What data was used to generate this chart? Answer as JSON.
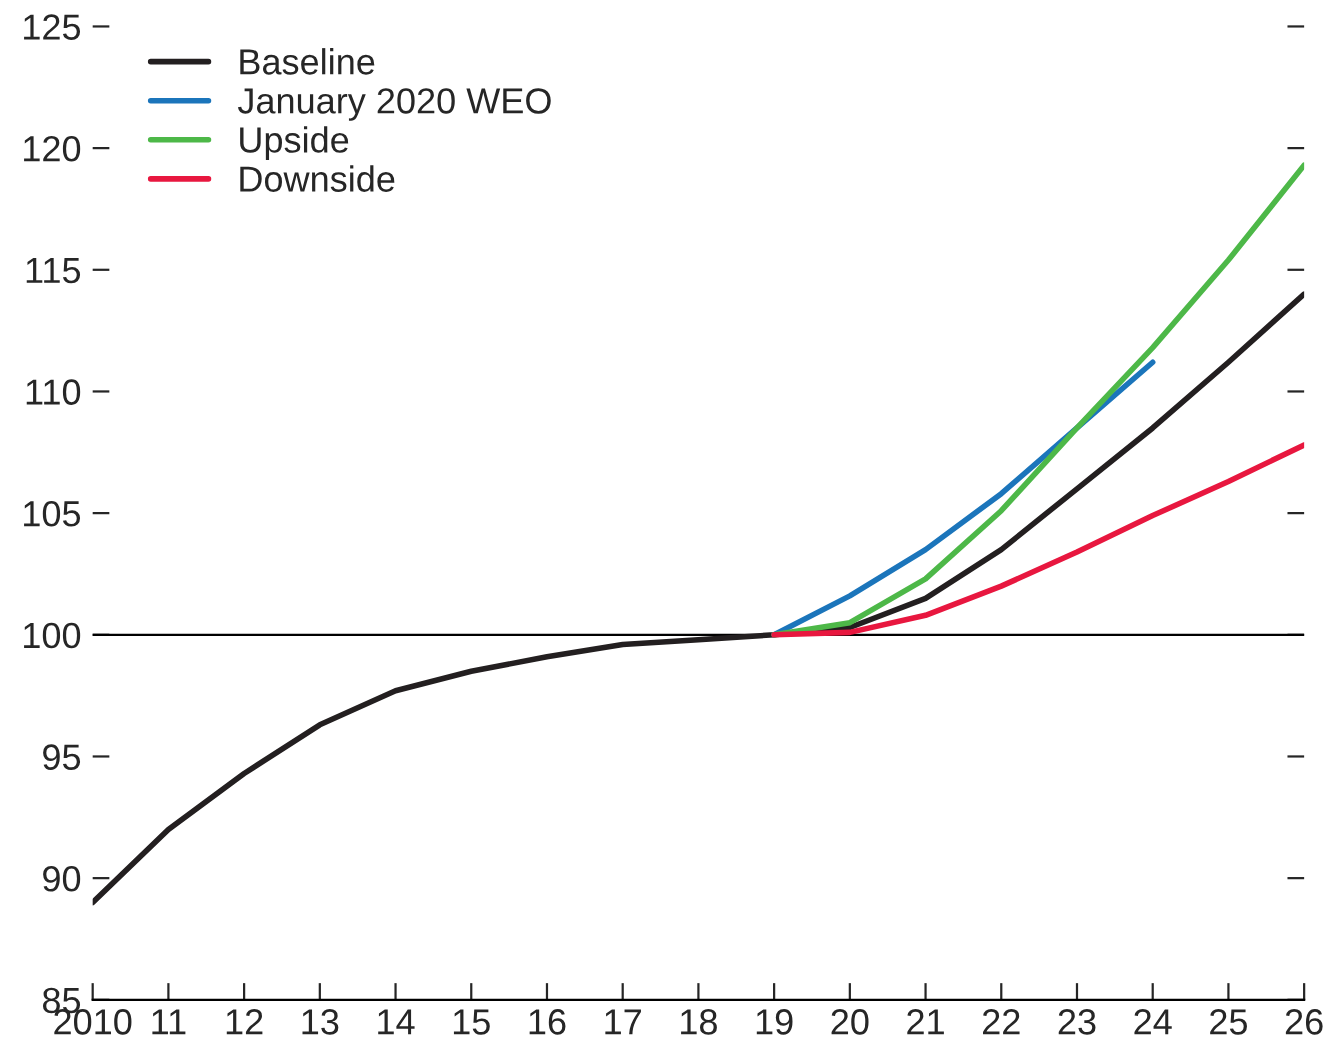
{
  "chart_data": {
    "type": "line",
    "x": [
      2010,
      2011,
      2012,
      2013,
      2014,
      2015,
      2016,
      2017,
      2018,
      2019,
      2020,
      2021,
      2022,
      2023,
      2024,
      2025,
      2026
    ],
    "series": [
      {
        "name": "Baseline",
        "color": "#231f20",
        "values": [
          89.0,
          92.0,
          94.3,
          96.3,
          97.7,
          98.5,
          99.1,
          99.6,
          99.8,
          100,
          100.3,
          101.5,
          103.5,
          106,
          108.5,
          111.2,
          114.0
        ]
      },
      {
        "name": "January 2020 WEO",
        "color": "#1b75bb",
        "x": [
          2019,
          2020,
          2021,
          2022,
          2023,
          2024
        ],
        "values": [
          100,
          101.6,
          103.5,
          105.8,
          108.5,
          111.2
        ]
      },
      {
        "name": "Upside",
        "color": "#4db848",
        "x": [
          2019,
          2020,
          2021,
          2022,
          2023,
          2024,
          2025,
          2026
        ],
        "values": [
          100,
          100.5,
          102.3,
          105.1,
          108.5,
          111.8,
          115.4,
          119.3
        ]
      },
      {
        "name": "Downside",
        "color": "#e8173f",
        "x": [
          2019,
          2020,
          2021,
          2022,
          2023,
          2024,
          2025,
          2026
        ],
        "values": [
          100,
          100.1,
          100.8,
          102.0,
          103.4,
          104.9,
          106.3,
          107.8
        ]
      }
    ],
    "xlim": [
      2010,
      2026
    ],
    "xticks": [
      {
        "value": 2010,
        "label": "2010"
      },
      {
        "value": 2011,
        "label": "11"
      },
      {
        "value": 2012,
        "label": "12"
      },
      {
        "value": 2013,
        "label": "13"
      },
      {
        "value": 2014,
        "label": "14"
      },
      {
        "value": 2015,
        "label": "15"
      },
      {
        "value": 2016,
        "label": "16"
      },
      {
        "value": 2017,
        "label": "17"
      },
      {
        "value": 2018,
        "label": "18"
      },
      {
        "value": 2019,
        "label": "19"
      },
      {
        "value": 2020,
        "label": "20"
      },
      {
        "value": 2021,
        "label": "21"
      },
      {
        "value": 2022,
        "label": "22"
      },
      {
        "value": 2023,
        "label": "23"
      },
      {
        "value": 2024,
        "label": "24"
      },
      {
        "value": 2025,
        "label": "25"
      },
      {
        "value": 2026,
        "label": "26"
      }
    ],
    "ylim": [
      85,
      125
    ],
    "yticks": [
      85,
      90,
      95,
      100,
      105,
      110,
      115,
      120,
      125
    ],
    "ref_lines": [
      {
        "axis": "y",
        "value": 100,
        "color": "#000000"
      }
    ],
    "legend": "top left",
    "grid": false,
    "marker": "none",
    "line_style": "solid"
  }
}
